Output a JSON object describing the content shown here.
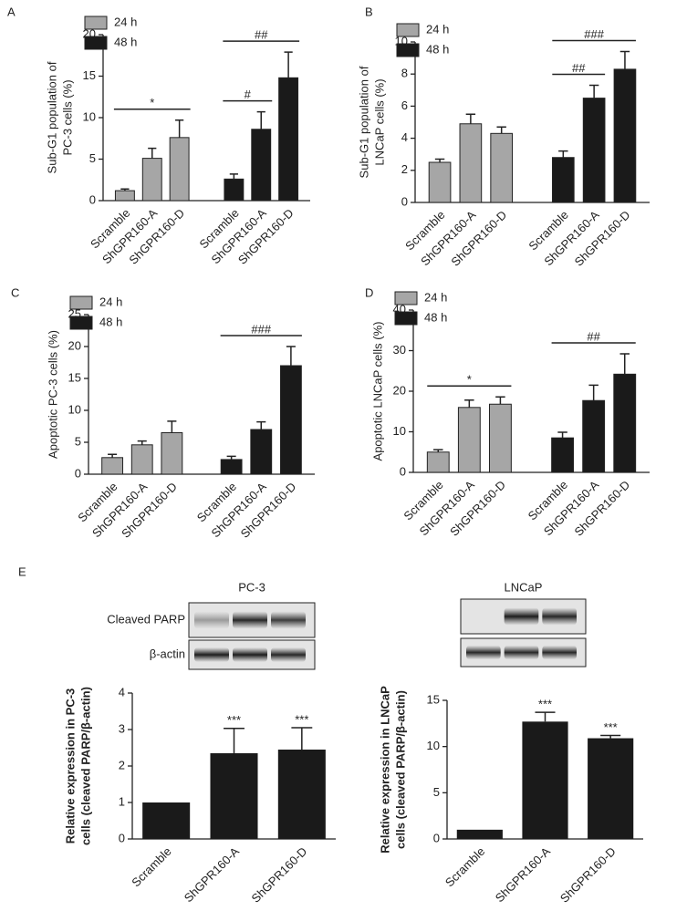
{
  "chart_data": [
    {
      "type": "bar",
      "panel": "A",
      "ylabel": [
        "Sub-G1 population of",
        "PC-3 cells (%)"
      ],
      "categories": [
        "Scramble",
        "ShGPR160-A",
        "ShGPR160-D"
      ],
      "ylim": [
        0,
        20
      ],
      "yticks": [
        0,
        5,
        10,
        15,
        20
      ],
      "legend": "upper left",
      "series": [
        {
          "name": "24 h",
          "color": "#a6a6a6",
          "values": [
            1.2,
            5.1,
            7.6
          ],
          "errors": [
            0.2,
            1.2,
            2.1
          ]
        },
        {
          "name": "48 h",
          "color": "#1a1a1a",
          "values": [
            2.6,
            8.6,
            14.8
          ],
          "errors": [
            0.6,
            2.1,
            3.1
          ]
        }
      ],
      "annotations": [
        {
          "text": "*",
          "series": 0,
          "from": 0,
          "to": 2
        },
        {
          "text": "#",
          "series": 1,
          "from": 0,
          "to": 1
        },
        {
          "text": "##",
          "series": 1,
          "from": 0,
          "to": 2
        }
      ]
    },
    {
      "type": "bar",
      "panel": "B",
      "ylabel": [
        "Sub-G1 population of",
        "LNCaP cells (%)"
      ],
      "categories": [
        "Scramble",
        "ShGPR160-A",
        "ShGPR160-D"
      ],
      "ylim": [
        0,
        10
      ],
      "yticks": [
        0,
        2,
        4,
        6,
        8,
        10
      ],
      "legend": "upper left",
      "series": [
        {
          "name": "24 h",
          "color": "#a6a6a6",
          "values": [
            2.5,
            4.9,
            4.3
          ],
          "errors": [
            0.2,
            0.6,
            0.4
          ]
        },
        {
          "name": "48 h",
          "color": "#1a1a1a",
          "values": [
            2.8,
            6.5,
            8.3
          ],
          "errors": [
            0.4,
            0.8,
            1.1
          ]
        }
      ],
      "annotations": [
        {
          "text": "##",
          "series": 1,
          "from": 0,
          "to": 1
        },
        {
          "text": "###",
          "series": 1,
          "from": 0,
          "to": 2
        }
      ]
    },
    {
      "type": "bar",
      "panel": "C",
      "ylabel": [
        "Apoptotic PC-3 cells (%)"
      ],
      "categories": [
        "Scramble",
        "ShGPR160-A",
        "ShGPR160-D"
      ],
      "ylim": [
        0,
        25
      ],
      "yticks": [
        0,
        5,
        10,
        15,
        20,
        25
      ],
      "legend": "upper left",
      "series": [
        {
          "name": "24 h",
          "color": "#a6a6a6",
          "values": [
            2.6,
            4.6,
            6.5
          ],
          "errors": [
            0.5,
            0.6,
            1.8
          ]
        },
        {
          "name": "48 h",
          "color": "#1a1a1a",
          "values": [
            2.3,
            7.0,
            17.0
          ],
          "errors": [
            0.5,
            1.2,
            3.0
          ]
        }
      ],
      "annotations": [
        {
          "text": "###",
          "series": 1,
          "from": 0,
          "to": 2
        }
      ]
    },
    {
      "type": "bar",
      "panel": "D",
      "ylabel": [
        "Apoptotic LNCaP cells (%)"
      ],
      "categories": [
        "Scramble",
        "ShGPR160-A",
        "ShGPR160-D"
      ],
      "ylim": [
        0,
        40
      ],
      "yticks": [
        0,
        10,
        20,
        30,
        40
      ],
      "legend": "upper left",
      "series": [
        {
          "name": "24 h",
          "color": "#a6a6a6",
          "values": [
            5.0,
            16.0,
            16.8
          ],
          "errors": [
            0.6,
            1.8,
            1.8
          ]
        },
        {
          "name": "48 h",
          "color": "#1a1a1a",
          "values": [
            8.5,
            17.7,
            24.2
          ],
          "errors": [
            1.4,
            3.8,
            5.0
          ]
        }
      ],
      "annotations": [
        {
          "text": "*",
          "series": 0,
          "from": 0,
          "to": 2
        },
        {
          "text": "##",
          "series": 1,
          "from": 0,
          "to": 2
        }
      ]
    },
    {
      "type": "bar",
      "panel": "E",
      "title": "PC-3",
      "blot_labels": [
        "Cleaved PARP",
        "β-actin"
      ],
      "ylabel": [
        "Relative expression in PC-3",
        "cells (cleaved PARP/β-actin)"
      ],
      "categories": [
        "Scramble",
        "ShGPR160-A",
        "ShGPR160-D"
      ],
      "color": "#1a1a1a",
      "values": [
        1,
        2.35,
        2.45
      ],
      "errors": [
        0,
        0.68,
        0.6
      ],
      "ylim": [
        0,
        4
      ],
      "yticks": [
        0,
        1,
        2,
        3,
        4
      ],
      "annotations": [
        {
          "text": "***",
          "bar": 1
        },
        {
          "text": "***",
          "bar": 2
        }
      ]
    },
    {
      "type": "bar",
      "title": "LNCaP",
      "ylabel": [
        "Relative expression in LNCaP",
        "cells (cleaved PARP/β-actin)"
      ],
      "categories": [
        "Scramble",
        "ShGPR160-A",
        "ShGPR160-D"
      ],
      "color": "#1a1a1a",
      "values": [
        1,
        12.7,
        10.9
      ],
      "errors": [
        0,
        1.0,
        0.3
      ],
      "ylim": [
        0,
        15
      ],
      "yticks": [
        0,
        5,
        10,
        15
      ],
      "annotations": [
        {
          "text": "***",
          "bar": 1
        },
        {
          "text": "***",
          "bar": 2
        }
      ]
    }
  ]
}
